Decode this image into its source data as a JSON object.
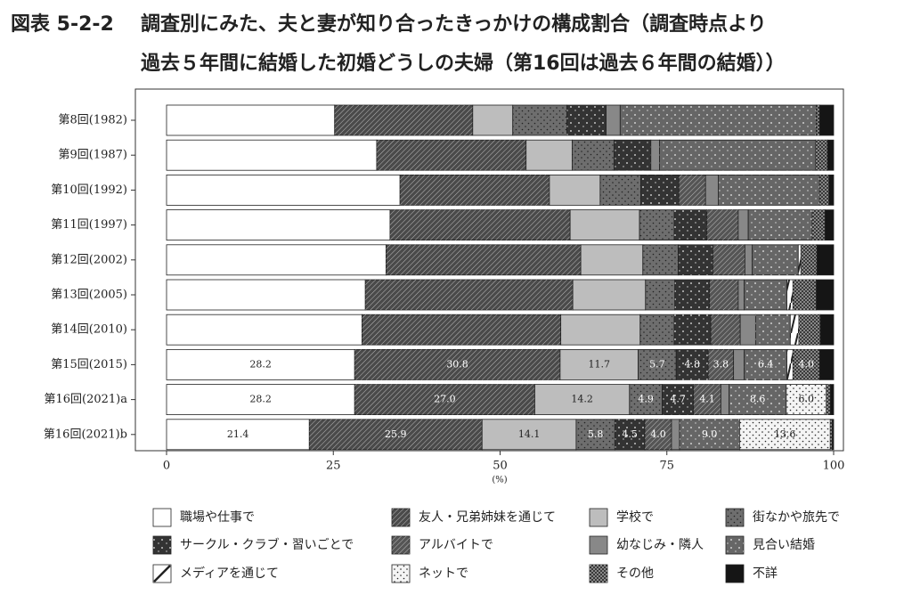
{
  "chart_data": {
    "type": "stacked-bar-horizontal",
    "figure_label": "図表 5-2-2",
    "title_lines": [
      "調査別にみた、夫と妻が知り合ったきっかけの構成割合（調査時点より",
      "過去５年間に結婚した初婚どうしの夫婦（第16回は過去６年間の結婚））"
    ],
    "x_label": "(%)",
    "categories": [
      "第8回(1982)",
      "第9回(1987)",
      "第10回(1992)",
      "第11回(1997)",
      "第12回(2002)",
      "第13回(2005)",
      "第14回(2010)",
      "第15回(2015)",
      "第16回(2021)a",
      "第16回(2021)b"
    ],
    "xlim": [
      0,
      100
    ],
    "xticks": [
      0,
      25,
      50,
      75,
      100
    ],
    "series": [
      {
        "name": "職場や仕事で",
        "color": "#ffffff",
        "pattern": null,
        "values": [
          25.2,
          31.5,
          35.0,
          33.5,
          32.9,
          29.8,
          29.3,
          28.2,
          28.2,
          21.4
        ],
        "value_labels": [
          null,
          null,
          null,
          null,
          null,
          null,
          null,
          "28.2",
          "28.2",
          "21.4"
        ]
      },
      {
        "name": "友人・兄弟姉妹を通じて",
        "color": "#4a4a4a",
        "pattern": "hatch-light",
        "values": [
          20.7,
          22.4,
          22.4,
          27.0,
          29.2,
          31.1,
          29.8,
          30.8,
          27.0,
          25.9
        ],
        "value_labels": [
          null,
          null,
          null,
          null,
          null,
          null,
          null,
          "30.8",
          "27.0",
          "25.9"
        ]
      },
      {
        "name": "学校で",
        "color": "#bdbdbd",
        "pattern": null,
        "values": [
          6.0,
          6.9,
          7.6,
          10.4,
          9.3,
          10.9,
          11.9,
          11.7,
          14.2,
          14.1
        ],
        "value_labels": [
          null,
          null,
          null,
          null,
          null,
          null,
          null,
          "11.7",
          "14.2",
          "14.1"
        ]
      },
      {
        "name": "街なかや旅先で",
        "color": "#6e6e6e",
        "pattern": "dots-black",
        "values": [
          8.1,
          6.3,
          6.1,
          5.2,
          5.3,
          4.4,
          5.1,
          5.7,
          4.9,
          5.8
        ],
        "value_labels": [
          null,
          null,
          null,
          null,
          null,
          null,
          null,
          "5.7",
          "4.9",
          "5.8"
        ]
      },
      {
        "name": "サークル・クラブ・習いごとで",
        "color": "#333333",
        "pattern": "dots-white",
        "values": [
          5.9,
          5.5,
          5.7,
          4.9,
          5.2,
          5.2,
          5.5,
          4.8,
          4.7,
          4.5
        ],
        "value_labels": [
          null,
          null,
          null,
          null,
          null,
          null,
          null,
          "4.8",
          "4.7",
          "4.5"
        ]
      },
      {
        "name": "アルバイトで",
        "color": "#555555",
        "pattern": "hatch-light",
        "values": [
          null,
          null,
          4.0,
          4.7,
          4.8,
          4.3,
          4.4,
          3.8,
          4.1,
          4.0
        ],
        "value_labels": [
          null,
          null,
          null,
          null,
          null,
          null,
          null,
          "3.8",
          "4.1",
          "4.0"
        ]
      },
      {
        "name": "幼なじみ・隣人",
        "color": "#888888",
        "pattern": null,
        "values": [
          2.1,
          1.3,
          1.9,
          1.5,
          1.1,
          0.9,
          2.3,
          1.6,
          1.2,
          1.2
        ],
        "value_labels": [
          null,
          null,
          null,
          null,
          null,
          null,
          null,
          null,
          null,
          null
        ]
      },
      {
        "name": "見合い結婚",
        "color": "#666666",
        "pattern": "dots-white",
        "values": [
          29.4,
          23.4,
          15.2,
          9.6,
          6.9,
          6.4,
          5.2,
          6.4,
          8.6,
          9.0
        ],
        "value_labels": [
          null,
          null,
          null,
          null,
          null,
          null,
          null,
          "6.4",
          "8.6",
          "9.0"
        ]
      },
      {
        "name": "メディアを通じて",
        "color": "#ffffff",
        "pattern": "slash",
        "values": [
          null,
          null,
          null,
          null,
          0.4,
          0.9,
          1.3,
          0.9,
          null,
          null
        ],
        "value_labels": [
          null,
          null,
          null,
          null,
          null,
          null,
          null,
          null,
          null,
          null
        ]
      },
      {
        "name": "ネットで",
        "color": "#f4f4f4",
        "pattern": "dots-black",
        "values": [
          null,
          null,
          null,
          null,
          null,
          null,
          null,
          null,
          6.0,
          13.6
        ],
        "value_labels": [
          null,
          null,
          null,
          null,
          null,
          null,
          null,
          null,
          "6.0",
          "13.6"
        ]
      },
      {
        "name": "その他",
        "color": "#3a3a3a",
        "pattern": "checker",
        "values": [
          0.5,
          1.8,
          1.4,
          1.9,
          2.4,
          3.5,
          3.2,
          4.0,
          0.6,
          0.3
        ],
        "value_labels": [
          null,
          null,
          null,
          null,
          null,
          null,
          null,
          "4.0",
          null,
          null
        ]
      },
      {
        "name": "不詳",
        "color": "#151515",
        "pattern": null,
        "values": [
          2.1,
          0.9,
          0.7,
          1.3,
          2.5,
          2.6,
          2.0,
          2.1,
          0.5,
          0.2
        ],
        "value_labels": [
          null,
          null,
          null,
          null,
          null,
          null,
          null,
          null,
          null,
          null
        ]
      }
    ]
  }
}
